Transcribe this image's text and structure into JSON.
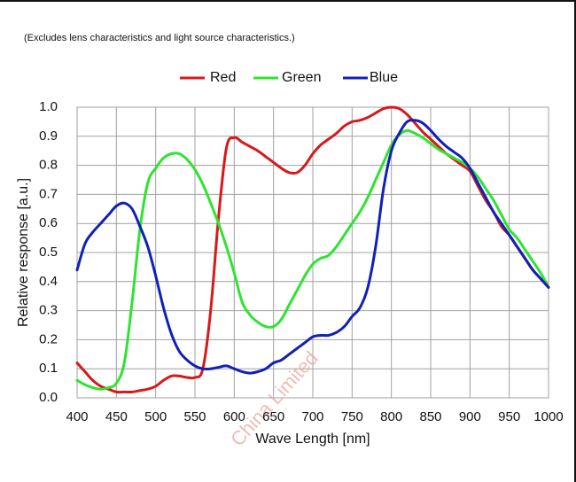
{
  "note": "(Excludes lens characteristics and light source characteristics.)",
  "watermark": "China Limited",
  "chart_data": {
    "type": "line",
    "title": "",
    "xlabel": "Wave Length [nm]",
    "ylabel": "Relative response [a.u.]",
    "xlim": [
      400,
      1000
    ],
    "ylim": [
      0,
      1.0
    ],
    "grid": true,
    "legend_position": "top-center",
    "x_ticks": [
      "400",
      "450",
      "500",
      "550",
      "600",
      "650",
      "700",
      "750",
      "800",
      "850",
      "900",
      "950",
      "1000"
    ],
    "y_ticks": [
      "0.0",
      "0.1",
      "0.2",
      "0.3",
      "0.4",
      "0.5",
      "0.6",
      "0.7",
      "0.8",
      "0.9",
      "1.0"
    ],
    "series": [
      {
        "name": "Red",
        "color": "#d8181a",
        "x": [
          400,
          410,
          420,
          430,
          440,
          450,
          460,
          470,
          480,
          490,
          500,
          510,
          520,
          530,
          540,
          550,
          560,
          570,
          580,
          590,
          600,
          610,
          620,
          630,
          640,
          650,
          660,
          670,
          680,
          690,
          700,
          710,
          720,
          730,
          740,
          750,
          760,
          770,
          780,
          790,
          800,
          810,
          820,
          830,
          840,
          850,
          860,
          870,
          880,
          890,
          900,
          910,
          920,
          930,
          940,
          950,
          960,
          970,
          980,
          990,
          1000
        ],
        "y": [
          0.12,
          0.09,
          0.06,
          0.04,
          0.03,
          0.02,
          0.02,
          0.02,
          0.025,
          0.03,
          0.04,
          0.06,
          0.075,
          0.075,
          0.07,
          0.07,
          0.1,
          0.3,
          0.62,
          0.86,
          0.895,
          0.88,
          0.865,
          0.85,
          0.83,
          0.81,
          0.79,
          0.775,
          0.775,
          0.8,
          0.84,
          0.87,
          0.89,
          0.91,
          0.935,
          0.95,
          0.955,
          0.965,
          0.98,
          0.995,
          1.0,
          0.995,
          0.975,
          0.945,
          0.915,
          0.89,
          0.865,
          0.84,
          0.82,
          0.8,
          0.78,
          0.73,
          0.68,
          0.64,
          0.59,
          0.56,
          0.52,
          0.48,
          0.44,
          0.41,
          0.38
        ]
      },
      {
        "name": "Green",
        "color": "#2fe42f",
        "x": [
          400,
          410,
          420,
          430,
          440,
          450,
          460,
          470,
          480,
          490,
          500,
          510,
          520,
          530,
          540,
          550,
          560,
          570,
          580,
          590,
          600,
          610,
          620,
          630,
          640,
          650,
          660,
          670,
          680,
          690,
          700,
          710,
          720,
          730,
          740,
          750,
          760,
          770,
          780,
          790,
          800,
          810,
          820,
          830,
          840,
          850,
          860,
          870,
          880,
          890,
          900,
          910,
          920,
          930,
          940,
          950,
          960,
          970,
          980,
          990,
          1000
        ],
        "y": [
          0.06,
          0.045,
          0.035,
          0.03,
          0.035,
          0.05,
          0.12,
          0.33,
          0.58,
          0.74,
          0.79,
          0.825,
          0.84,
          0.84,
          0.82,
          0.785,
          0.735,
          0.67,
          0.6,
          0.52,
          0.43,
          0.33,
          0.285,
          0.26,
          0.245,
          0.245,
          0.27,
          0.32,
          0.37,
          0.42,
          0.46,
          0.48,
          0.49,
          0.52,
          0.56,
          0.6,
          0.64,
          0.69,
          0.75,
          0.81,
          0.87,
          0.905,
          0.92,
          0.91,
          0.895,
          0.875,
          0.855,
          0.84,
          0.825,
          0.81,
          0.79,
          0.76,
          0.72,
          0.68,
          0.63,
          0.58,
          0.55,
          0.51,
          0.47,
          0.43,
          0.38
        ]
      },
      {
        "name": "Blue",
        "color": "#1020b8",
        "x": [
          400,
          410,
          420,
          430,
          440,
          450,
          460,
          470,
          480,
          490,
          500,
          510,
          520,
          530,
          540,
          550,
          560,
          570,
          580,
          590,
          600,
          610,
          620,
          630,
          640,
          650,
          660,
          670,
          680,
          690,
          700,
          710,
          720,
          730,
          740,
          750,
          760,
          770,
          780,
          790,
          800,
          810,
          820,
          830,
          840,
          850,
          860,
          870,
          880,
          890,
          900,
          910,
          920,
          930,
          940,
          950,
          960,
          970,
          980,
          990,
          1000
        ],
        "y": [
          0.44,
          0.53,
          0.57,
          0.6,
          0.63,
          0.66,
          0.67,
          0.65,
          0.59,
          0.52,
          0.42,
          0.31,
          0.22,
          0.16,
          0.13,
          0.11,
          0.1,
          0.1,
          0.105,
          0.11,
          0.1,
          0.09,
          0.085,
          0.09,
          0.1,
          0.12,
          0.13,
          0.15,
          0.17,
          0.19,
          0.21,
          0.215,
          0.215,
          0.225,
          0.245,
          0.28,
          0.31,
          0.38,
          0.52,
          0.72,
          0.85,
          0.91,
          0.95,
          0.955,
          0.945,
          0.92,
          0.89,
          0.865,
          0.845,
          0.825,
          0.79,
          0.74,
          0.69,
          0.64,
          0.6,
          0.56,
          0.52,
          0.48,
          0.44,
          0.41,
          0.38
        ]
      }
    ]
  }
}
